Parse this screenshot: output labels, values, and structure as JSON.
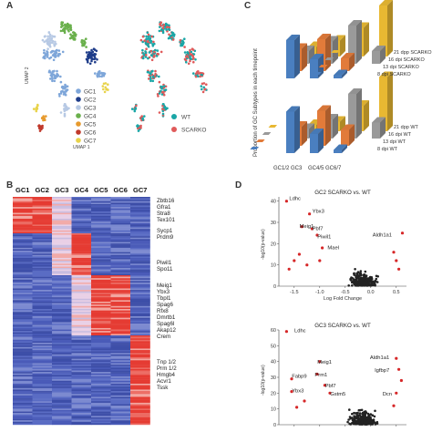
{
  "panels": {
    "a": "A",
    "b": "B",
    "c": "C",
    "d": "D"
  },
  "panel_a": {
    "umap_x": "UMAP 1",
    "umap_y": "UMAP 2",
    "clusters": [
      "GC1",
      "GC2",
      "GC3",
      "GC4",
      "GC5",
      "GC6",
      "GC7"
    ],
    "cluster_colors": [
      "#7ea6d9",
      "#1f3d8a",
      "#b7c9e4",
      "#6ab04c",
      "#e79a2d",
      "#c0392b",
      "#e8d34a"
    ],
    "genotypes": [
      "WT",
      "SCARKO"
    ],
    "genotype_colors": [
      "#1aa6a6",
      "#e05a5a"
    ]
  },
  "panel_b": {
    "columns": [
      "GC1",
      "GC2",
      "GC3",
      "GC4",
      "GC5",
      "GC6",
      "GC7"
    ],
    "genes": [
      "Zbtb16",
      "Gfra1",
      "Stra8",
      "Tex101",
      "Sycp1",
      "Prdm9",
      "Piwil1",
      "Spo11",
      "Meig1",
      "Ybx3",
      "Tbpl1",
      "Spag6",
      "Rfx8",
      "Dmrtb1",
      "Spag6l",
      "Akap12",
      "Crem",
      "Tnp 1/2",
      "Prm 1/2",
      "Hmgb4",
      "Acvr1",
      "Tssk"
    ]
  },
  "chart_data": [
    {
      "type": "bar",
      "ylabel": "Proportion of GC Subtypes in each timepoint",
      "categories": [
        "GC1/2",
        "GC3",
        "GC4/5",
        "GC6/7"
      ],
      "series": [
        {
          "name": "21 dpp SCARKO",
          "values": [
            0.15,
            0.25,
            0.45,
            0.8
          ]
        },
        {
          "name": "16 dpi SCARKO",
          "values": [
            0.2,
            0.35,
            0.6,
            0.2
          ]
        },
        {
          "name": "13 dpi SCARKO",
          "values": [
            0.35,
            0.5,
            0.2,
            0.0
          ]
        },
        {
          "name": "8 dpi SCARKO",
          "values": [
            0.6,
            0.3,
            0.05,
            0.0
          ]
        },
        {
          "name": "21 dpp WT",
          "values": [
            0.1,
            0.15,
            0.4,
            0.85
          ]
        },
        {
          "name": "16 dpi WT",
          "values": [
            0.15,
            0.3,
            0.7,
            0.25
          ]
        },
        {
          "name": "13 dpi WT",
          "values": [
            0.3,
            0.55,
            0.25,
            0.0
          ]
        },
        {
          "name": "8 dpi WT",
          "values": [
            0.65,
            0.3,
            0.05,
            0.0
          ]
        }
      ]
    },
    {
      "type": "scatter",
      "title": "GC2 SCARKO vs. WT",
      "xlabel": "Log Fold Change",
      "ylabel": "-log10(p-value)",
      "xticks": [
        "-1.5",
        "-1.0",
        "-0.5",
        "0.0",
        "0.5"
      ],
      "yticks": [
        "0",
        "10",
        "20",
        "30",
        "40"
      ],
      "xlim": [
        -1.8,
        0.7
      ],
      "ylim": [
        0,
        42
      ],
      "labels": [
        {
          "text": "Ldhc",
          "x": -1.65,
          "y": 40
        },
        {
          "text": "Ybx3",
          "x": -1.2,
          "y": 34
        },
        {
          "text": "Meig1",
          "x": -1.45,
          "y": 27
        },
        {
          "text": "Pbf7",
          "x": -1.2,
          "y": 26
        },
        {
          "text": "Piwil1",
          "x": -1.1,
          "y": 22
        },
        {
          "text": "Mael",
          "x": -0.9,
          "y": 17
        },
        {
          "text": "Aldh1a1",
          "x": 0.45,
          "y": 23
        }
      ],
      "points": [
        {
          "x": -1.65,
          "y": 40
        },
        {
          "x": -1.2,
          "y": 34
        },
        {
          "x": -1.35,
          "y": 28
        },
        {
          "x": -1.15,
          "y": 27
        },
        {
          "x": -1.05,
          "y": 24
        },
        {
          "x": -0.95,
          "y": 18
        },
        {
          "x": 0.62,
          "y": 25
        },
        {
          "x": -1.4,
          "y": 15
        },
        {
          "x": -1.5,
          "y": 12
        },
        {
          "x": -1.25,
          "y": 10
        },
        {
          "x": -1.6,
          "y": 8
        },
        {
          "x": 0.5,
          "y": 12
        },
        {
          "x": 0.55,
          "y": 8
        },
        {
          "x": 0.45,
          "y": 16
        },
        {
          "x": -1.0,
          "y": 12
        }
      ]
    },
    {
      "type": "scatter",
      "title": "GC3 SCARKO vs. WT",
      "ylabel": "-log10(p-value)",
      "yticks": [
        "0",
        "10",
        "20",
        "30",
        "40",
        "50",
        "60"
      ],
      "xlim": [
        -1.8,
        0.7
      ],
      "ylim": [
        0,
        60
      ],
      "labels": [
        {
          "text": "Ldhc",
          "x": -1.55,
          "y": 58
        },
        {
          "text": "Meig1",
          "x": -1.1,
          "y": 38
        },
        {
          "text": "Prm1",
          "x": -1.15,
          "y": 30
        },
        {
          "text": "Pbf7",
          "x": -0.95,
          "y": 23
        },
        {
          "text": "Gstm5",
          "x": -0.85,
          "y": 18
        },
        {
          "text": "Fabp9",
          "x": -1.6,
          "y": 29
        },
        {
          "text": "Ybx3",
          "x": -1.6,
          "y": 20
        },
        {
          "text": "Aldh1a1",
          "x": 0.4,
          "y": 41
        },
        {
          "text": "Igfbp7",
          "x": 0.4,
          "y": 33
        },
        {
          "text": "Dcn",
          "x": 0.45,
          "y": 18
        }
      ],
      "points": [
        {
          "x": -1.65,
          "y": 59
        },
        {
          "x": -1.0,
          "y": 40
        },
        {
          "x": -1.05,
          "y": 32
        },
        {
          "x": -0.9,
          "y": 25
        },
        {
          "x": -0.8,
          "y": 20
        },
        {
          "x": -1.55,
          "y": 29
        },
        {
          "x": -1.55,
          "y": 21
        },
        {
          "x": 0.5,
          "y": 42
        },
        {
          "x": 0.55,
          "y": 35
        },
        {
          "x": 0.5,
          "y": 20
        },
        {
          "x": 0.6,
          "y": 28
        },
        {
          "x": -1.3,
          "y": 15
        },
        {
          "x": -1.45,
          "y": 11
        },
        {
          "x": 0.45,
          "y": 12
        }
      ]
    }
  ]
}
